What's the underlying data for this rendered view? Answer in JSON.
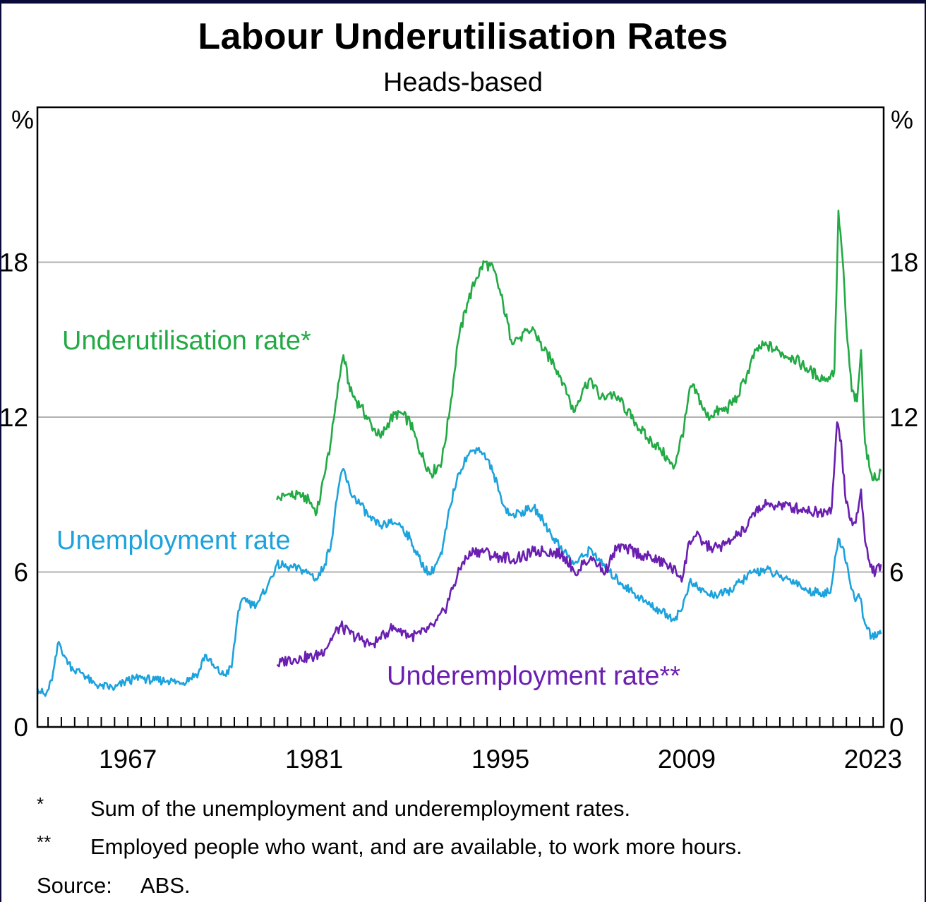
{
  "header": {
    "title": "Labour Underutilisation Rates",
    "subtitle": "Heads-based"
  },
  "footnotes": [
    {
      "mark": "*",
      "text": "Sum of the unemployment and underemployment rates."
    },
    {
      "mark": "**",
      "text": "Employed people who want, and are available, to work more hours."
    }
  ],
  "source": {
    "label": "Source:",
    "value": "ABS."
  },
  "chart_data": {
    "type": "line",
    "title": "Labour Underutilisation Rates",
    "subtitle": "Heads-based",
    "xlim": [
      1960.2,
      2023.8
    ],
    "ylim": [
      0,
      24
    ],
    "x_ticks": [
      1967,
      1981,
      1995,
      2009,
      2023
    ],
    "y_ticks": [
      0,
      6,
      12,
      18
    ],
    "y_unit": "%",
    "grid": true,
    "colors": {
      "underutilisation": "#22aa44",
      "unemployment": "#1ca2dc",
      "underemployment": "#6a1fb0"
    },
    "series": [
      {
        "name": "Underutilisation rate*",
        "key": "underutilisation",
        "points": [
          [
            1978.2,
            8.8
          ],
          [
            1979,
            9.0
          ],
          [
            1980,
            8.9
          ],
          [
            1980.6,
            8.8
          ],
          [
            1981.2,
            8.3
          ],
          [
            1981.8,
            9.8
          ],
          [
            1982.3,
            11.2
          ],
          [
            1982.8,
            13.3
          ],
          [
            1983.2,
            14.4
          ],
          [
            1983.7,
            13.0
          ],
          [
            1984.5,
            12.4
          ],
          [
            1985.3,
            11.7
          ],
          [
            1986,
            11.2
          ],
          [
            1986.7,
            11.9
          ],
          [
            1987.4,
            12.2
          ],
          [
            1988.2,
            11.8
          ],
          [
            1989,
            10.6
          ],
          [
            1989.8,
            9.8
          ],
          [
            1990.6,
            10.3
          ],
          [
            1991.2,
            12.3
          ],
          [
            1991.8,
            14.9
          ],
          [
            1992.5,
            16.4
          ],
          [
            1993.2,
            17.4
          ],
          [
            1993.8,
            18.0
          ],
          [
            1994.5,
            17.7
          ],
          [
            1995.2,
            16.4
          ],
          [
            1995.8,
            15.0
          ],
          [
            1996.5,
            15.1
          ],
          [
            1997.5,
            15.4
          ],
          [
            1998.2,
            14.6
          ],
          [
            1999,
            14.1
          ],
          [
            1999.8,
            13.3
          ],
          [
            2000.5,
            12.2
          ],
          [
            2001.2,
            13.1
          ],
          [
            2001.8,
            13.5
          ],
          [
            2002.5,
            12.7
          ],
          [
            2003.2,
            12.9
          ],
          [
            2004,
            12.6
          ],
          [
            2005,
            11.9
          ],
          [
            2006,
            11.2
          ],
          [
            2007,
            10.8
          ],
          [
            2008,
            10.0
          ],
          [
            2008.8,
            11.6
          ],
          [
            2009.3,
            13.2
          ],
          [
            2009.8,
            12.9
          ],
          [
            2010.5,
            12.0
          ],
          [
            2011.2,
            12.2
          ],
          [
            2012,
            12.3
          ],
          [
            2012.8,
            12.8
          ],
          [
            2013.5,
            13.6
          ],
          [
            2014.2,
            14.6
          ],
          [
            2015,
            14.8
          ],
          [
            2016,
            14.5
          ],
          [
            2017,
            14.3
          ],
          [
            2018,
            13.9
          ],
          [
            2018.8,
            13.6
          ],
          [
            2019.5,
            13.5
          ],
          [
            2020.1,
            13.8
          ],
          [
            2020.4,
            20.0
          ],
          [
            2020.7,
            18.2
          ],
          [
            2021,
            15.5
          ],
          [
            2021.4,
            13.0
          ],
          [
            2021.8,
            12.6
          ],
          [
            2022.1,
            14.6
          ],
          [
            2022.4,
            11.0
          ],
          [
            2022.8,
            9.9
          ],
          [
            2023.2,
            9.6
          ],
          [
            2023.6,
            9.9
          ]
        ]
      },
      {
        "name": "Unemployment rate",
        "key": "unemployment",
        "points": [
          [
            1960.2,
            1.5
          ],
          [
            1960.8,
            1.2
          ],
          [
            1961.3,
            1.8
          ],
          [
            1961.8,
            3.3
          ],
          [
            1962.3,
            2.7
          ],
          [
            1962.9,
            2.2
          ],
          [
            1963.6,
            2.1
          ],
          [
            1964.3,
            1.7
          ],
          [
            1965,
            1.6
          ],
          [
            1966,
            1.5
          ],
          [
            1967,
            1.8
          ],
          [
            1968,
            1.9
          ],
          [
            1969,
            1.8
          ],
          [
            1970,
            1.8
          ],
          [
            1971,
            1.7
          ],
          [
            1972.3,
            2.1
          ],
          [
            1972.8,
            2.8
          ],
          [
            1973.5,
            2.3
          ],
          [
            1974.2,
            2.0
          ],
          [
            1974.8,
            2.3
          ],
          [
            1975.3,
            4.5
          ],
          [
            1975.8,
            5.0
          ],
          [
            1976.4,
            4.7
          ],
          [
            1976.9,
            4.9
          ],
          [
            1977.6,
            5.6
          ],
          [
            1978.2,
            6.3
          ],
          [
            1979,
            6.2
          ],
          [
            1980,
            6.1
          ],
          [
            1980.8,
            5.9
          ],
          [
            1981.2,
            5.7
          ],
          [
            1981.8,
            6.3
          ],
          [
            1982.3,
            7.2
          ],
          [
            1982.8,
            9.2
          ],
          [
            1983.2,
            10.0
          ],
          [
            1983.7,
            9.1
          ],
          [
            1984.5,
            8.6
          ],
          [
            1985.3,
            8.0
          ],
          [
            1986,
            7.8
          ],
          [
            1986.7,
            7.9
          ],
          [
            1987.4,
            7.9
          ],
          [
            1988.2,
            7.3
          ],
          [
            1989,
            6.4
          ],
          [
            1989.7,
            5.9
          ],
          [
            1990.6,
            6.7
          ],
          [
            1991.2,
            8.5
          ],
          [
            1991.8,
            9.8
          ],
          [
            1992.5,
            10.5
          ],
          [
            1993.2,
            10.8
          ],
          [
            1993.8,
            10.6
          ],
          [
            1994.5,
            9.8
          ],
          [
            1995.2,
            8.6
          ],
          [
            1995.8,
            8.2
          ],
          [
            1996.5,
            8.3
          ],
          [
            1997.5,
            8.5
          ],
          [
            1998.2,
            8.0
          ],
          [
            1999,
            7.3
          ],
          [
            1999.8,
            6.8
          ],
          [
            2000.5,
            6.3
          ],
          [
            2001.2,
            6.6
          ],
          [
            2001.8,
            6.9
          ],
          [
            2002.5,
            6.4
          ],
          [
            2003.2,
            6.0
          ],
          [
            2004,
            5.6
          ],
          [
            2005,
            5.2
          ],
          [
            2006,
            4.8
          ],
          [
            2007,
            4.5
          ],
          [
            2008,
            4.2
          ],
          [
            2008.6,
            4.5
          ],
          [
            2009.2,
            5.6
          ],
          [
            2009.8,
            5.4
          ],
          [
            2010.5,
            5.2
          ],
          [
            2011.2,
            5.1
          ],
          [
            2012,
            5.2
          ],
          [
            2013,
            5.6
          ],
          [
            2014,
            6.0
          ],
          [
            2015,
            6.1
          ],
          [
            2016,
            5.8
          ],
          [
            2017,
            5.7
          ],
          [
            2018,
            5.3
          ],
          [
            2019,
            5.2
          ],
          [
            2019.8,
            5.2
          ],
          [
            2020.4,
            7.3
          ],
          [
            2020.8,
            6.9
          ],
          [
            2021.2,
            5.8
          ],
          [
            2021.6,
            5.0
          ],
          [
            2022,
            5.0
          ],
          [
            2022.4,
            4.0
          ],
          [
            2022.9,
            3.5
          ],
          [
            2023.3,
            3.5
          ],
          [
            2023.6,
            3.6
          ]
        ]
      },
      {
        "name": "Underemployment rate**",
        "key": "underemployment",
        "points": [
          [
            1978.2,
            2.4
          ],
          [
            1979,
            2.6
          ],
          [
            1980,
            2.7
          ],
          [
            1981,
            2.7
          ],
          [
            1981.8,
            3.0
          ],
          [
            1982.5,
            3.6
          ],
          [
            1983,
            3.9
          ],
          [
            1983.7,
            3.6
          ],
          [
            1984.5,
            3.4
          ],
          [
            1985.3,
            3.2
          ],
          [
            1986,
            3.4
          ],
          [
            1986.7,
            3.8
          ],
          [
            1987.5,
            3.8
          ],
          [
            1988.2,
            3.5
          ],
          [
            1989,
            3.6
          ],
          [
            1990,
            3.9
          ],
          [
            1990.8,
            4.5
          ],
          [
            1991.5,
            5.5
          ],
          [
            1992.2,
            6.4
          ],
          [
            1993,
            6.8
          ],
          [
            1993.8,
            6.8
          ],
          [
            1994.5,
            6.6
          ],
          [
            1995.2,
            6.6
          ],
          [
            1996,
            6.5
          ],
          [
            1996.8,
            6.6
          ],
          [
            1997.5,
            6.8
          ],
          [
            1998.2,
            6.8
          ],
          [
            1999,
            6.8
          ],
          [
            1999.8,
            6.6
          ],
          [
            2000.4,
            6.2
          ],
          [
            2000.8,
            5.9
          ],
          [
            2001.2,
            6.3
          ],
          [
            2001.8,
            6.6
          ],
          [
            2002.4,
            6.3
          ],
          [
            2002.8,
            5.9
          ],
          [
            2003.2,
            6.4
          ],
          [
            2003.8,
            7.0
          ],
          [
            2004.5,
            6.9
          ],
          [
            2005.5,
            6.7
          ],
          [
            2006.5,
            6.5
          ],
          [
            2007.5,
            6.3
          ],
          [
            2008.2,
            6.0
          ],
          [
            2008.7,
            5.8
          ],
          [
            2009.2,
            7.2
          ],
          [
            2009.7,
            7.4
          ],
          [
            2010.3,
            7.1
          ],
          [
            2011,
            6.9
          ],
          [
            2012,
            7.1
          ],
          [
            2012.8,
            7.4
          ],
          [
            2013.5,
            7.7
          ],
          [
            2014.2,
            8.4
          ],
          [
            2015,
            8.6
          ],
          [
            2016,
            8.6
          ],
          [
            2017,
            8.5
          ],
          [
            2018,
            8.4
          ],
          [
            2019,
            8.3
          ],
          [
            2019.9,
            8.5
          ],
          [
            2020.3,
            11.8
          ],
          [
            2020.6,
            11.1
          ],
          [
            2020.9,
            9.0
          ],
          [
            2021.3,
            8.0
          ],
          [
            2021.7,
            7.9
          ],
          [
            2022.1,
            9.2
          ],
          [
            2022.4,
            7.2
          ],
          [
            2022.8,
            6.2
          ],
          [
            2023.2,
            6.0
          ],
          [
            2023.6,
            6.3
          ]
        ]
      }
    ],
    "annotations": [
      {
        "series": "underutilisation",
        "text": "Underutilisation rate*"
      },
      {
        "series": "unemployment",
        "text": "Unemployment rate"
      },
      {
        "series": "underemployment",
        "text": "Underemployment rate**"
      }
    ]
  }
}
